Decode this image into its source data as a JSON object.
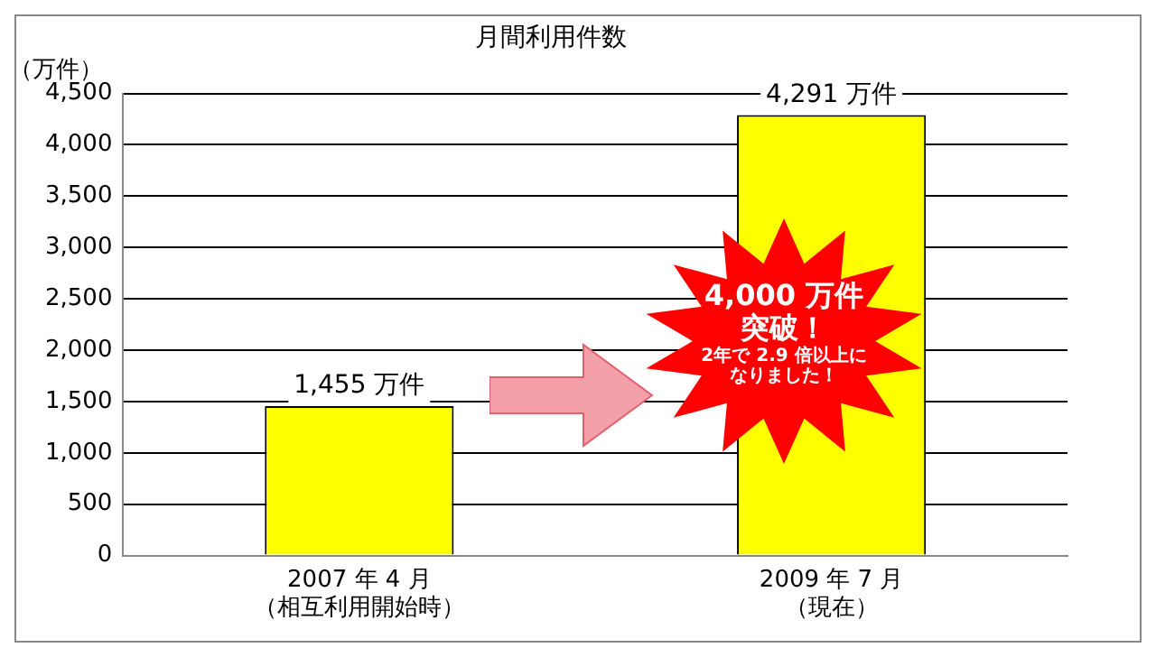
{
  "chart_data": {
    "type": "bar",
    "title": "月間利用件数",
    "ylabel": "（万件）",
    "categories": [
      "2007 年 4 月（相互利用開始時）",
      "2009 年 7 月（現在）"
    ],
    "values": [
      1455,
      4291
    ],
    "value_labels": [
      "1,455 万件",
      "4,291 万件"
    ],
    "color": "#ffff00",
    "ylim": [
      0,
      4500
    ],
    "yticks": [
      0,
      500,
      {
        "value": 1000,
        "label": "1,000"
      },
      {
        "value": 1500,
        "label": "1,500"
      },
      {
        "value": 2000,
        "label": "2,000"
      },
      {
        "value": 2500,
        "label": "2,500"
      },
      {
        "value": 3000,
        "label": "3,000"
      },
      {
        "value": 3500,
        "label": "3,500"
      },
      {
        "value": 4000,
        "label": "4,000"
      },
      {
        "value": 4500,
        "label": "4,500"
      }
    ],
    "grid": "y",
    "legend": false,
    "annotations": [
      "4,000 万件",
      "突破！",
      "2年で 2.9 倍以上に",
      "なりました！"
    ]
  }
}
